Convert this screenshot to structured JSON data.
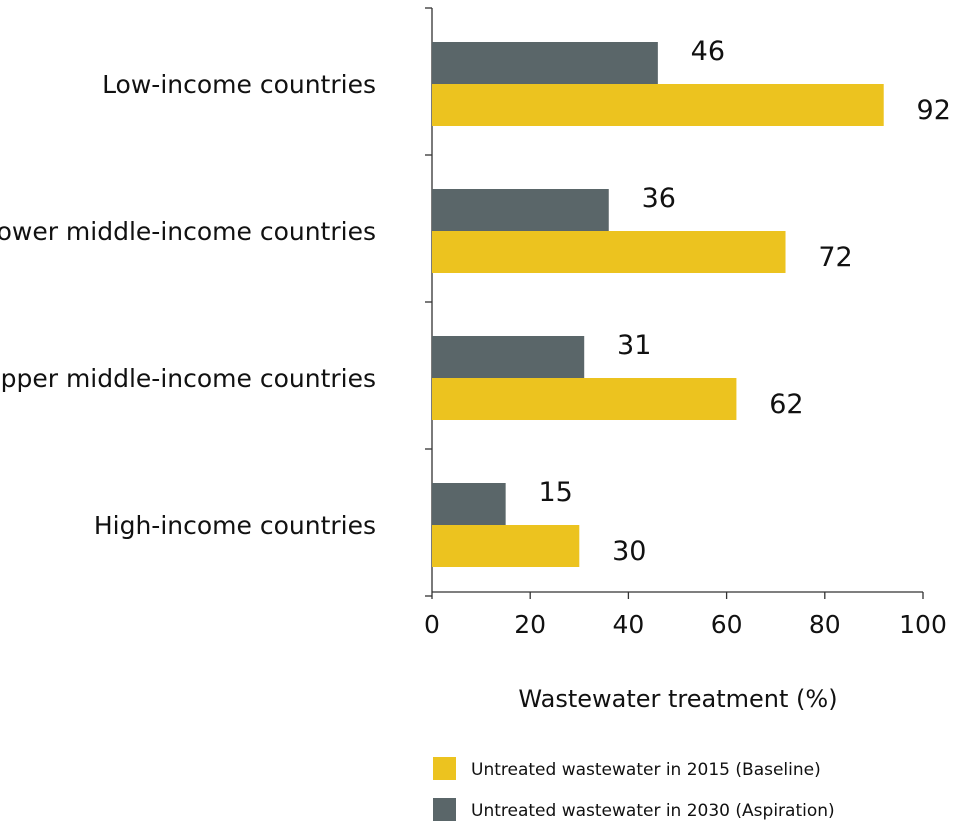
{
  "chart_data": {
    "type": "bar",
    "orientation": "horizontal",
    "categories": [
      "Low-income countries",
      "Lower middle-income countries",
      "Upper middle-income countries",
      "High-income countries"
    ],
    "series": [
      {
        "name": "Untreated wastewater in 2030 (Aspiration)",
        "color": "#5a6669",
        "values": [
          46,
          36,
          31,
          15
        ]
      },
      {
        "name": "Untreated wastewater in 2015 (Baseline)",
        "color": "#ecc31f",
        "values": [
          92,
          72,
          62,
          30
        ]
      }
    ],
    "xlabel": "Wastewater treatment (%)",
    "xlim": [
      0,
      100
    ],
    "xticks": [
      0,
      20,
      40,
      60,
      80,
      100
    ],
    "data_labels": true,
    "legend": {
      "position": "bottom",
      "entries": [
        {
          "label": "Untreated wastewater in 2015 (Baseline)",
          "color": "#ecc31f"
        },
        {
          "label": "Untreated wastewater in 2030 (Aspiration)",
          "color": "#5a6669"
        }
      ]
    },
    "grid": false
  }
}
